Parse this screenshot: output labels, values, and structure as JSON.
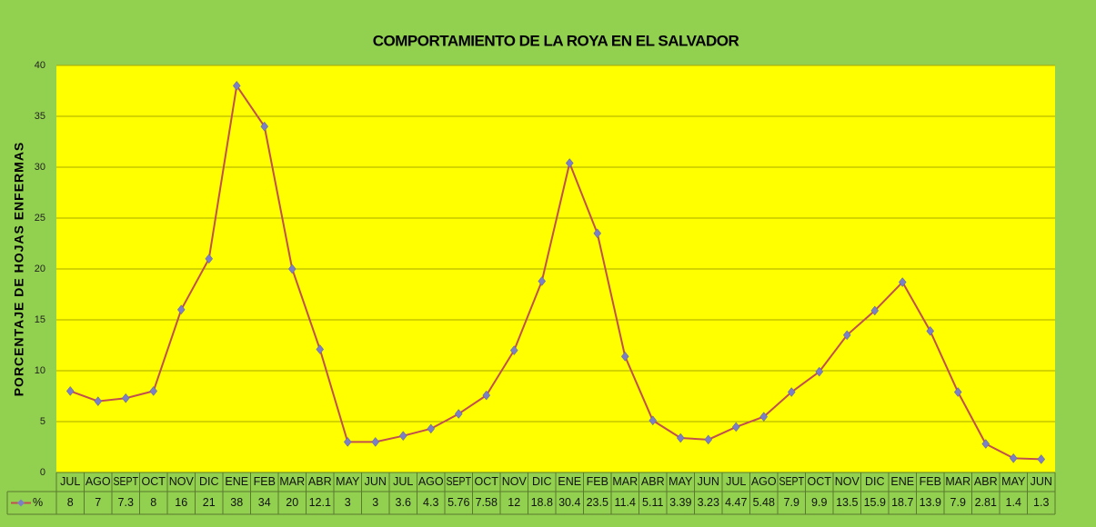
{
  "chart_data": {
    "type": "line",
    "title": "COMPORTAMIENTO DE LA ROYA EN EL SALVADOR",
    "y_label": "PORCENTAJE DE HOJAS ENFERMAS",
    "categories": [
      "JUL",
      "AGO",
      "SEPT",
      "OCT",
      "NOV",
      "DIC",
      "ENE",
      "FEB",
      "MAR",
      "ABR",
      "MAY",
      "JUN",
      "JUL",
      "AGO",
      "SEPT",
      "OCT",
      "NOV",
      "DIC",
      "ENE",
      "FEB",
      "MAR",
      "ABR",
      "MAY",
      "JUN",
      "JUL",
      "AGO",
      "SEPT",
      "OCT",
      "NOV",
      "DIC",
      "ENE",
      "FEB",
      "MAR",
      "ABR",
      "MAY",
      "JUN"
    ],
    "series": [
      {
        "name": "%",
        "color": "#c0504d",
        "marker_color": "#7b7fc4",
        "values": [
          8,
          7,
          7.3,
          8,
          16,
          21,
          38,
          34,
          20,
          12.1,
          3,
          3,
          3.6,
          4.3,
          5.76,
          7.58,
          12,
          18.8,
          30.4,
          23.5,
          11.4,
          5.11,
          3.39,
          3.23,
          4.47,
          5.48,
          7.9,
          9.9,
          13.5,
          15.9,
          18.7,
          13.9,
          7.9,
          2.81,
          1.4,
          1.3
        ]
      }
    ],
    "ylim": [
      0,
      40
    ],
    "yticks": [
      0,
      5,
      10,
      15,
      20,
      25,
      30,
      35,
      40
    ],
    "grid": true,
    "background": "#92d050",
    "plot_background": "#ffff00"
  }
}
